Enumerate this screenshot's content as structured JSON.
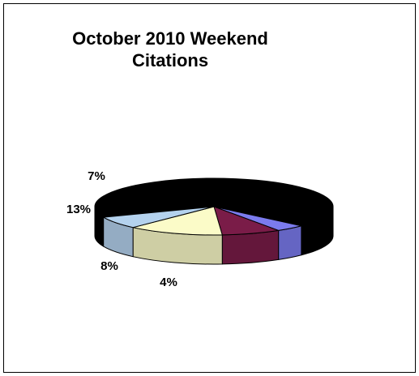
{
  "chart_data": {
    "type": "pie",
    "style": "3d",
    "title": "October 2010 Weekend Citations",
    "legend": "none",
    "slices": [
      {
        "value": 68,
        "label": "",
        "color": "#000000"
      },
      {
        "value": 4,
        "label": "4%",
        "color": "#7b7bee"
      },
      {
        "value": 8,
        "label": "8%",
        "color": "#7a1c48"
      },
      {
        "value": 13,
        "label": "13%",
        "color": "#fbfbc8"
      },
      {
        "value": 7,
        "label": "7%",
        "color": "#b4d2ee"
      }
    ]
  }
}
